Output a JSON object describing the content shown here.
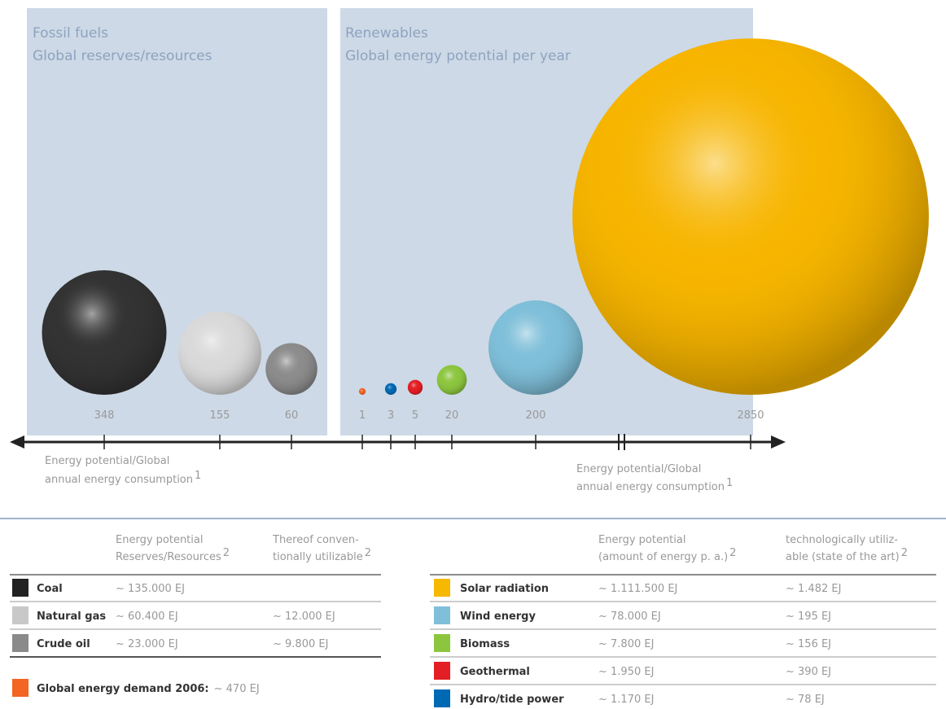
{
  "fossil": {
    "title": "Fossil fuels",
    "subtitle": "Global reserves/resources",
    "bubbles": [
      {
        "value": 348,
        "color": "#333333"
      },
      {
        "value": 155,
        "color": "#d9d9d9"
      },
      {
        "value": 60,
        "color": "#8c8c8c"
      }
    ]
  },
  "renewables": {
    "title": "Renewables",
    "subtitle": "Global energy potential per year",
    "bubbles": [
      {
        "value": 1,
        "color": "#f26522"
      },
      {
        "value": 3,
        "color": "#0069b4"
      },
      {
        "value": 5,
        "color": "#e31e24"
      },
      {
        "value": 20,
        "color": "#8cc63f"
      },
      {
        "value": 200,
        "color": "#7fbfd9"
      },
      {
        "value": 2850,
        "color": "#f7b500"
      }
    ]
  },
  "left_axis_label": {
    "lines": [
      "Energy potential/Global",
      "annual energy consumption"
    ],
    "note": "1"
  },
  "right_axis_label": {
    "lines": [
      "Energy potential/Global",
      "annual energy consumption"
    ],
    "note": "1"
  },
  "fossil_table": {
    "headers": [
      {
        "lines": [
          "Energy potential",
          "Reserves/Resources"
        ],
        "note": "2"
      },
      {
        "lines": [
          "Thereof conven-",
          "tionally utilizable"
        ],
        "note": "2"
      }
    ],
    "rows": [
      {
        "name": "Coal",
        "color": "#222222",
        "cells": [
          "~ 135.000 EJ",
          null
        ]
      },
      {
        "name": "Natural gas",
        "color": "#c8c8c8",
        "cells": [
          "~ 60.400 EJ",
          "~ 12.000 EJ"
        ]
      },
      {
        "name": "Crude oil",
        "color": "#8a8a8a",
        "cells": [
          "~ 23.000 EJ",
          "~ 9.800 EJ"
        ]
      }
    ]
  },
  "demand": {
    "label": "Global energy demand 2006:",
    "value": "~ 470 EJ",
    "color": "#f26522"
  },
  "renewable_table": {
    "headers": [
      {
        "lines": [
          "Energy potential",
          "(amount of energy p. a.)"
        ],
        "note": "2"
      },
      {
        "lines": [
          "technologically utiliz-",
          "able (state of the art)"
        ],
        "note": "2"
      }
    ],
    "rows": [
      {
        "name": "Solar radiation",
        "color": "#f6b800",
        "cells": [
          "~ 1.111.500 EJ",
          "~ 1.482 EJ"
        ]
      },
      {
        "name": "Wind energy",
        "color": "#7fbfd9",
        "cells": [
          "~ 78.000 EJ",
          "~ 195 EJ"
        ]
      },
      {
        "name": "Biomass",
        "color": "#8cc63f",
        "cells": [
          "~ 7.800 EJ",
          "~ 156 EJ"
        ]
      },
      {
        "name": "Geothermal",
        "color": "#e31e24",
        "cells": [
          "~ 1.950 EJ",
          "~ 390 EJ"
        ]
      },
      {
        "name": "Hydro/tide power",
        "color": "#0069b4",
        "cells": [
          "~ 1.170 EJ",
          "~ 78 EJ"
        ]
      }
    ]
  }
}
